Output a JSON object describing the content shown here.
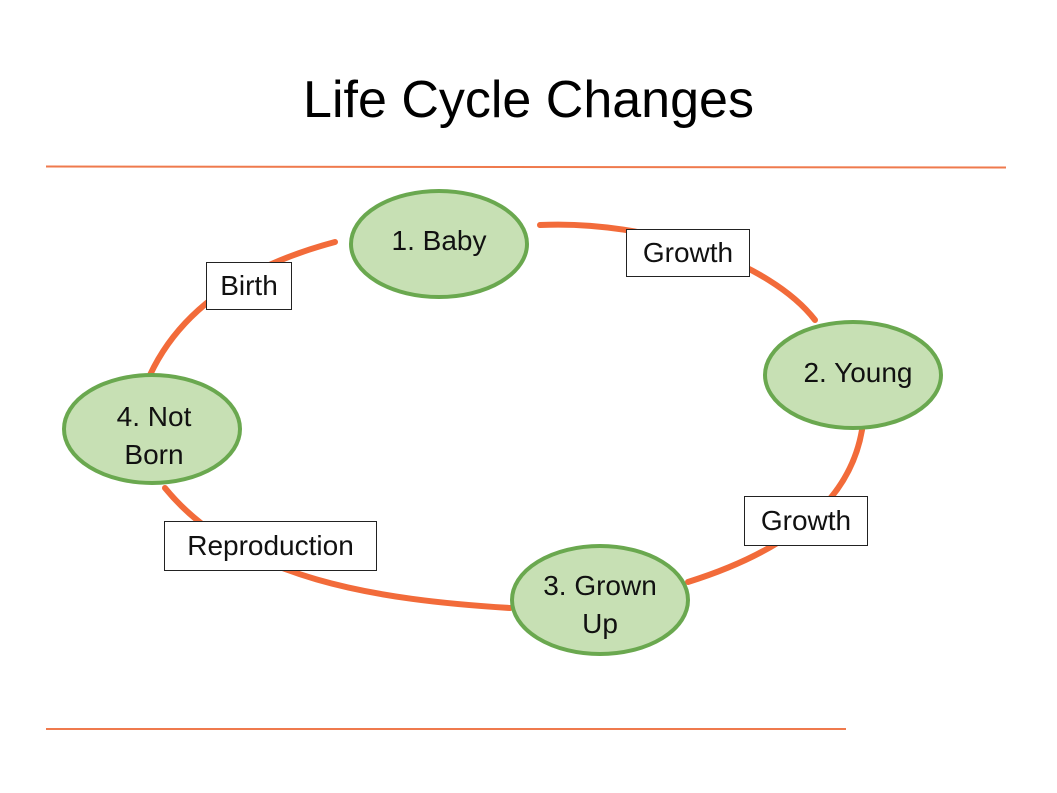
{
  "title": "Life Cycle Changes",
  "stages": [
    {
      "id": "baby",
      "label": "1. Baby"
    },
    {
      "id": "young",
      "label": "2. Young"
    },
    {
      "id": "grown-up",
      "label": "3. Grown\nUp"
    },
    {
      "id": "not-born",
      "label": "4. Not\nBorn"
    }
  ],
  "transitions": [
    {
      "from": "not-born",
      "to": "baby",
      "label": "Birth"
    },
    {
      "from": "baby",
      "to": "young",
      "label": "Growth"
    },
    {
      "from": "young",
      "to": "grown-up",
      "label": "Growth"
    },
    {
      "from": "grown-up",
      "to": "not-born",
      "label": "Reproduction"
    }
  ],
  "colors": {
    "cycle_line": "#f26b3a",
    "node_fill": "#c7e0b4",
    "node_border": "#6aa84f",
    "rule": "#ef7a4d"
  }
}
